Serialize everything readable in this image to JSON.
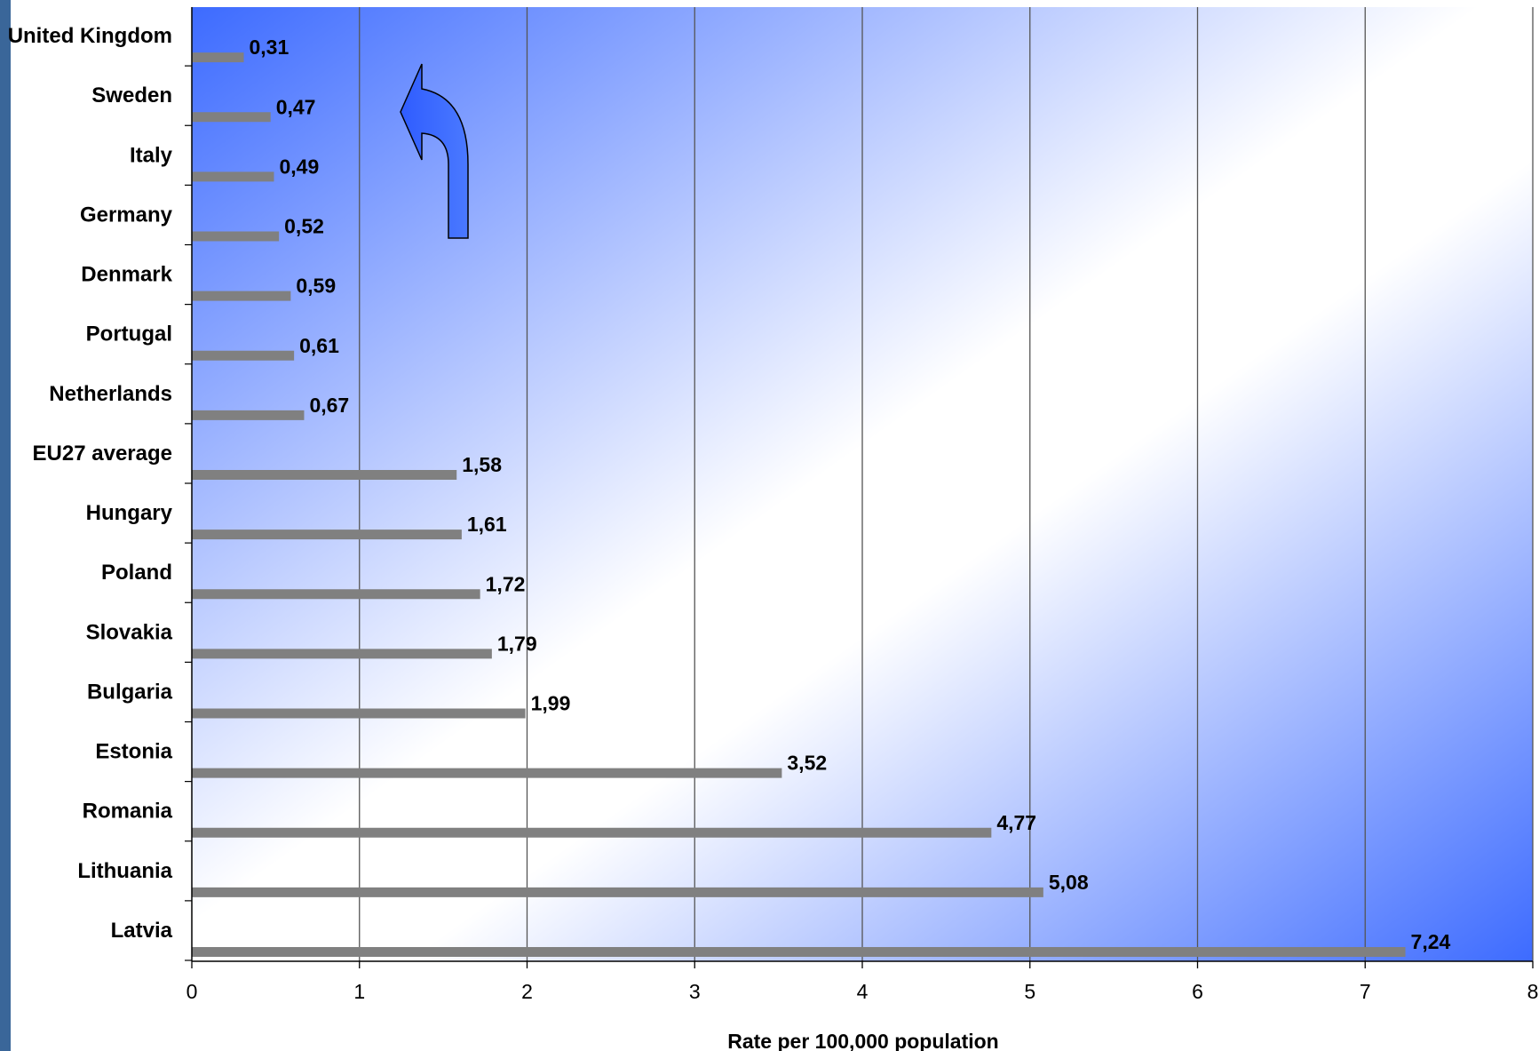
{
  "colors": {
    "accent_strip": "#3a6699",
    "gradient_blue": "#3d6bff",
    "bar": "#808080",
    "gridline": "#555555"
  },
  "decorations": [
    {
      "icon": "curved-arrow-up-left-icon",
      "color": "#3d6bff"
    }
  ],
  "chart_data": {
    "type": "bar",
    "orientation": "horizontal",
    "categories": [
      "United Kingdom",
      "Sweden",
      "Italy",
      "Germany",
      "Denmark",
      "Portugal",
      "Netherlands",
      "EU27 average",
      "Hungary",
      "Poland",
      "Slovakia",
      "Bulgaria",
      "Estonia",
      "Romania",
      "Lithuania",
      "Latvia"
    ],
    "values": [
      0.31,
      0.47,
      0.49,
      0.52,
      0.59,
      0.61,
      0.67,
      1.58,
      1.61,
      1.72,
      1.79,
      1.99,
      3.52,
      4.77,
      5.08,
      7.24
    ],
    "value_labels": [
      "0,31",
      "0,47",
      "0,49",
      "0,52",
      "0,59",
      "0,61",
      "0,67",
      "1,58",
      "1,61",
      "1,72",
      "1,79",
      "1,99",
      "3,52",
      "4,77",
      "5,08",
      "7,24"
    ],
    "xlim": [
      0,
      8
    ],
    "xticks": [
      "0",
      "1",
      "2",
      "3",
      "4",
      "5",
      "6",
      "7",
      "8"
    ],
    "xlabel": "Rate per 100,000 population",
    "ylabel": "",
    "title": "",
    "grid": true,
    "legend": "none"
  }
}
